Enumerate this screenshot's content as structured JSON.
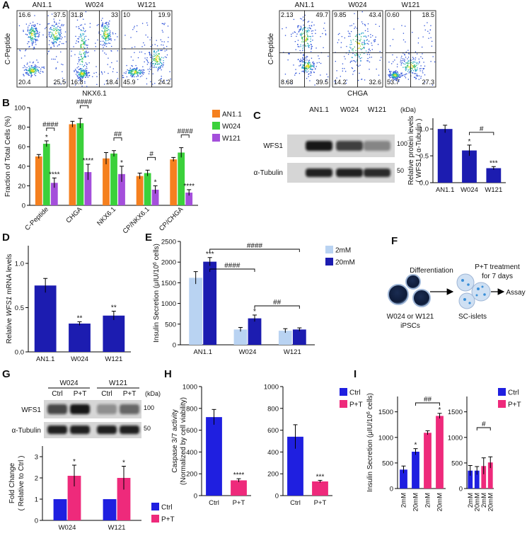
{
  "panel_labels": [
    "A",
    "B",
    "C",
    "D",
    "E",
    "F",
    "G",
    "H",
    "I"
  ],
  "flow": [
    {
      "ylabel": "C-Peptide",
      "xlabel": "NKX6.1",
      "plots": [
        {
          "title": "AN1.1",
          "quadrants": [
            "16.6",
            "37.5",
            "20.4",
            "25.5"
          ]
        },
        {
          "title": "W024",
          "quadrants": [
            "31.8",
            "33",
            "16.8",
            "18.4"
          ]
        },
        {
          "title": "W121",
          "quadrants": [
            "10",
            "19.9",
            "45.9",
            "24.2"
          ]
        }
      ]
    },
    {
      "ylabel": "C-Peptide",
      "xlabel": "CHGA",
      "plots": [
        {
          "title": "AN1.1",
          "quadrants": [
            "2.13",
            "49.7",
            "8.68",
            "39.5"
          ]
        },
        {
          "title": "W024",
          "quadrants": [
            "9.85",
            "43.4",
            "14.2",
            "32.6"
          ]
        },
        {
          "title": "W121",
          "quadrants": [
            "0.60",
            "18.5",
            "53.7",
            "27.3"
          ]
        }
      ]
    }
  ],
  "blot_c": {
    "lanes": [
      "AN1.1",
      "W024",
      "W121"
    ],
    "unit": "(kDa)",
    "rows": [
      {
        "protein": "WFS1",
        "marker": "100"
      },
      {
        "protein": "α-Tubulin",
        "marker": "50"
      }
    ]
  },
  "blot_g": {
    "groups": [
      {
        "name": "W024",
        "lanes": [
          "Ctrl",
          "P+T"
        ]
      },
      {
        "name": "W121",
        "lanes": [
          "Ctrl",
          "P+T"
        ]
      }
    ],
    "unit": "(kDa)",
    "rows": [
      {
        "protein": "WFS1",
        "marker": "100"
      },
      {
        "protein": "α-Tubulin",
        "marker": "50"
      }
    ]
  },
  "diagram": {
    "step1": "Differentiation",
    "step2": [
      "P+T treatment",
      "for 7 days"
    ],
    "step3": "Assay",
    "source": [
      "W024 or W121",
      "iPSCs"
    ],
    "product": "SC-islets"
  },
  "chart_data": [
    {
      "type": "bar",
      "categories": [
        "C-Peptide",
        "CHGA",
        "NKX6.1",
        "CP/NKX6.1",
        "CP/CHGA"
      ],
      "ylabel": [
        [
          "Fraction of Total Cells (%)"
        ]
      ],
      "ylim": [
        0,
        100
      ],
      "yticks": [
        0,
        20,
        40,
        60,
        80,
        100
      ],
      "series": [
        {
          "name": "AN1.1",
          "color": "#f5801f",
          "values": [
            50,
            83,
            48,
            30,
            47
          ],
          "errors": [
            2,
            3,
            6,
            3,
            2
          ]
        },
        {
          "name": "W024",
          "color": "#3bd13b",
          "values": [
            63,
            84,
            53,
            33,
            54
          ],
          "errors": [
            3,
            5,
            3,
            3,
            5
          ]
        },
        {
          "name": "W121",
          "color": "#a44fdb",
          "values": [
            23,
            34,
            32,
            16,
            13
          ],
          "errors": [
            5,
            8,
            8,
            4,
            3
          ]
        }
      ],
      "legend": "right",
      "annotations": [
        "*",
        "####",
        "****",
        "####",
        "****",
        "##",
        "*",
        "#",
        "*",
        "####",
        "****"
      ]
    },
    {
      "type": "bar",
      "categories": [
        "AN1.1",
        "W024",
        "W121"
      ],
      "values": [
        1.0,
        0.6,
        0.27
      ],
      "errors": [
        0.07,
        0.1,
        0.03
      ],
      "color": "#1c1cb0",
      "ylim": [
        0,
        1.2
      ],
      "yticks": [
        {
          "value": 0,
          "label": "0.0"
        },
        {
          "value": 0.5,
          "label": "0.5"
        },
        {
          "value": 1,
          "label": "1.0"
        }
      ],
      "ylabel": [
        [
          "Relative protein levels"
        ],
        [
          "( WFS1 / α-Tubulin )"
        ]
      ],
      "annotations": [
        "#",
        "*",
        "***"
      ]
    },
    {
      "type": "bar",
      "categories": [
        "AN1.1",
        "W024",
        "W121"
      ],
      "values": [
        0.75,
        0.32,
        0.41
      ],
      "errors": [
        0.08,
        0.02,
        0.05
      ],
      "color": "#1c1cb0",
      "ylim": [
        0,
        1.2
      ],
      "yticks": [
        {
          "value": 0,
          "label": "0.0"
        },
        {
          "value": 0.5,
          "label": "0.5"
        },
        {
          "value": 1,
          "label": "1.0"
        }
      ],
      "ylabel": [
        [
          "Relative ",
          {
            "text": "WFS1",
            "style": "italic"
          },
          " mRNA levels"
        ]
      ],
      "annotations": [
        "**",
        "**"
      ]
    },
    {
      "type": "bar",
      "categories": [
        "AN1.1",
        "W024",
        "W121"
      ],
      "ylim": [
        0,
        2500
      ],
      "yticks": [
        0,
        500,
        1000,
        1500,
        2000,
        2500
      ],
      "ylabel": [
        [
          "Insulin Secretion (μIU/10",
          {
            "text": "6",
            "style": "sup"
          },
          " cells)"
        ]
      ],
      "series": [
        {
          "name": "2mM",
          "color": "#b9d3f2",
          "values": [
            1620,
            370,
            340
          ],
          "errors": [
            150,
            50,
            50
          ]
        },
        {
          "name": "20mM",
          "color": "#1c1cb0",
          "values": [
            2010,
            640,
            370
          ],
          "errors": [
            100,
            80,
            40
          ]
        }
      ],
      "legend": "right",
      "annotations": [
        "***",
        "*",
        "####",
        "####",
        "##"
      ]
    },
    {
      "type": "bar",
      "categories": [
        "W024",
        "W121"
      ],
      "ylim": [
        0,
        3.5
      ],
      "yticks": [
        0,
        1,
        2,
        3
      ],
      "ylabel": [
        [
          "Fold Change"
        ],
        [
          "( Relative to Ctrl )"
        ]
      ],
      "series": [
        {
          "name": "Ctrl",
          "color": "#1f1fe0",
          "values": [
            1,
            1
          ]
        },
        {
          "name": "P+T",
          "color": "#ee2a7b",
          "values": [
            2.1,
            2.0
          ],
          "errors": [
            0.5,
            0.55
          ]
        }
      ],
      "legend": "right",
      "annotations": [
        "*",
        "*"
      ]
    },
    {
      "type": "bar",
      "categories": [
        "Ctrl",
        "P+T"
      ],
      "ylim": [
        0,
        1000
      ],
      "yticks": [
        0,
        200,
        400,
        600,
        800,
        1000
      ],
      "ylabel": [
        [
          "Caspase 3/7 activity"
        ],
        [
          "(Normalized by cell viability)"
        ]
      ],
      "series": [
        {
          "color": "#1f1fe0",
          "values": [
            720,
            null
          ],
          "errors": [
            70,
            null
          ]
        },
        {
          "color": "#ee2a7b",
          "values": [
            null,
            140
          ],
          "errors": [
            null,
            15
          ]
        }
      ],
      "annotations": [
        "****"
      ]
    },
    {
      "type": "bar",
      "categories": [
        "Ctrl",
        "P+T"
      ],
      "ylim": [
        0,
        1000
      ],
      "yticks": [
        0,
        200,
        400,
        600,
        800,
        1000
      ],
      "ylabel": [],
      "series": [
        {
          "name": "Ctrl",
          "color": "#1f1fe0",
          "values": [
            540,
            null
          ],
          "errors": [
            110,
            null
          ]
        },
        {
          "name": "P+T",
          "color": "#ee2a7b",
          "values": [
            null,
            130
          ],
          "errors": [
            null,
            10
          ]
        }
      ],
      "legend": "right",
      "annotations": [
        "***"
      ]
    },
    {
      "type": "bar",
      "categories": [
        "2mM",
        "20mM",
        "2mM",
        "20mM"
      ],
      "ylim": [
        0,
        1800
      ],
      "yticks": [
        0,
        500,
        1000,
        1500
      ],
      "ylabel": [
        [
          "Insulin Secretion (μIU/10",
          {
            "text": "6",
            "style": "sup"
          },
          " cells)"
        ]
      ],
      "series": [
        {
          "color": "#1f1fe0",
          "values": [
            370,
            720,
            null,
            null
          ],
          "errors": [
            70,
            60,
            null,
            null
          ]
        },
        {
          "color": "#ee2a7b",
          "values": [
            null,
            null,
            1090,
            1420
          ],
          "errors": [
            null,
            null,
            40,
            50
          ]
        }
      ],
      "annotations": [
        "*",
        "*",
        "##"
      ]
    },
    {
      "type": "bar",
      "categories": [
        "2mM",
        "20mM",
        "2mM",
        "20mM"
      ],
      "ylim": [
        0,
        1800
      ],
      "yticks": [
        0,
        500,
        1000,
        1500
      ],
      "ylabel": [],
      "series": [
        {
          "name": "Ctrl",
          "color": "#1f1fe0",
          "values": [
            350,
            350,
            null,
            null
          ],
          "errors": [
            100,
            80,
            null,
            null
          ]
        },
        {
          "name": "P+T",
          "color": "#ee2a7b",
          "values": [
            null,
            null,
            440,
            510
          ],
          "errors": [
            null,
            null,
            160,
            110
          ]
        }
      ],
      "legend": "right",
      "annotations": [
        "#"
      ]
    }
  ]
}
